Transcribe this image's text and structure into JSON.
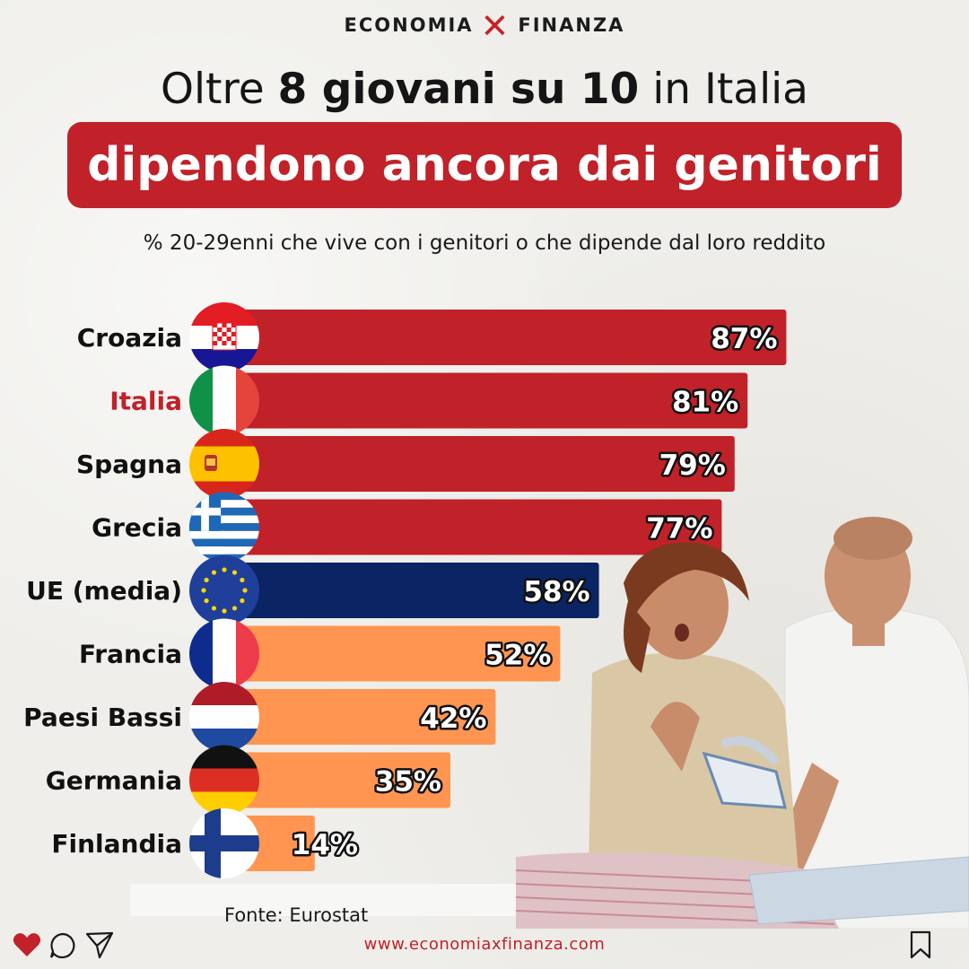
{
  "brand": {
    "left": "ECONOMIA",
    "mark": "✕",
    "right": "FINANZA"
  },
  "headline": {
    "part1": "Oltre ",
    "bold": "8 giovani su 10",
    "part2": " in Italia",
    "highlight": "dipendono ancora dai genitori"
  },
  "subtitle": "% 20-29enni che vive con i genitori o che dipende dal loro reddito",
  "source": "Fonte: Eurostat",
  "footer": {
    "url": "www.economiaxfinanza.com"
  },
  "icons": [
    "heart-icon",
    "comment-icon",
    "send-icon",
    "bookmark-icon"
  ],
  "colors": {
    "brand_red": "#c12129",
    "eu_navy": "#0b2463",
    "orange": "#ff9550",
    "highlight_label": "#c12129"
  },
  "chart_data": {
    "type": "bar",
    "orientation": "horizontal",
    "categories": [
      "Croazia",
      "Italia",
      "Spagna",
      "Grecia",
      "UE (media)",
      "Francia",
      "Paesi Bassi",
      "Germania",
      "Finlandia"
    ],
    "values": [
      87,
      81,
      79,
      77,
      58,
      52,
      42,
      35,
      14
    ],
    "value_labels": [
      "87%",
      "81%",
      "79%",
      "77%",
      "58%",
      "52%",
      "42%",
      "35%",
      "14%"
    ],
    "bar_colors": [
      "#c12129",
      "#c12129",
      "#c12129",
      "#c12129",
      "#0b2463",
      "#ff9550",
      "#ff9550",
      "#ff9550",
      "#ff9550"
    ],
    "label_colors": [
      "#111111",
      "#c12129",
      "#111111",
      "#111111",
      "#111111",
      "#111111",
      "#111111",
      "#111111",
      "#111111"
    ],
    "flags": [
      "croatia-flag-icon",
      "italy-flag-icon",
      "spain-flag-icon",
      "greece-flag-icon",
      "eu-flag-icon",
      "france-flag-icon",
      "netherlands-flag-icon",
      "germany-flag-icon",
      "finland-flag-icon"
    ],
    "unit": "%",
    "xlim": [
      0,
      100
    ],
    "grid": false,
    "legend": "none"
  }
}
